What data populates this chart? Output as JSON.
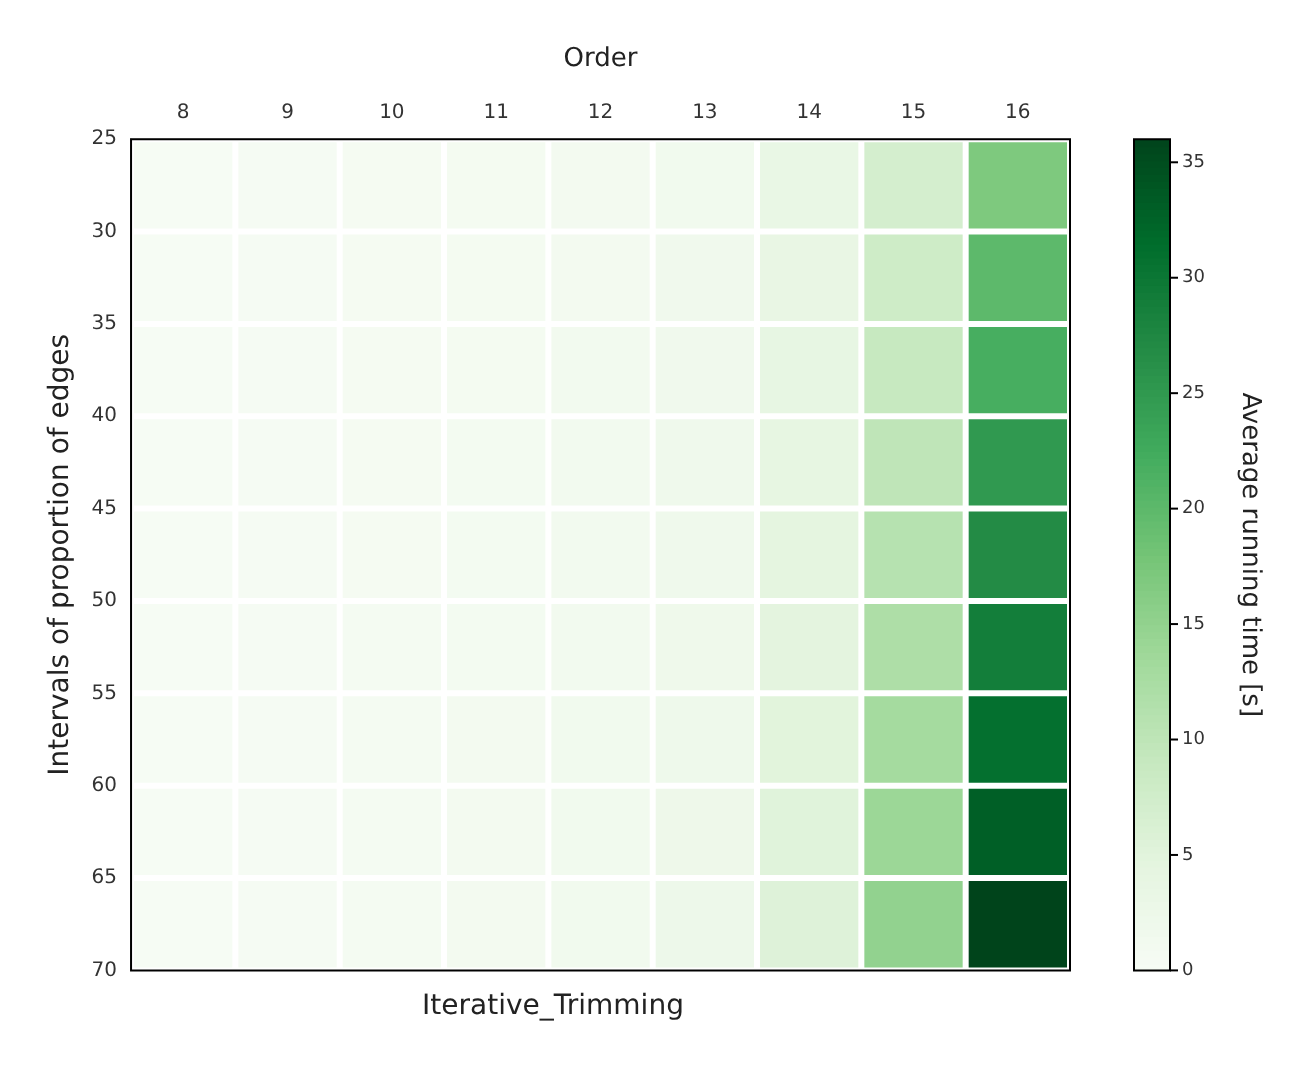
{
  "chart_data": {
    "type": "heatmap",
    "title": "Iterative_Trimming",
    "xlabel": "Order",
    "ylabel": "Intervals of proportion of edges",
    "clabel": "Average running time [s]",
    "categories": [
      "8",
      "9",
      "10",
      "11",
      "12",
      "13",
      "14",
      "15",
      "16"
    ],
    "ylim": [
      70,
      25
    ],
    "yticks": [
      25,
      30,
      35,
      40,
      45,
      50,
      55,
      60,
      65,
      70
    ],
    "clim": [
      0,
      36
    ],
    "cticks": [
      0,
      5,
      10,
      15,
      20,
      25,
      30,
      35
    ],
    "cells": [
      [
        0.2,
        0.4,
        0.6,
        0.8,
        1.1,
        1.6,
        3.4,
        7,
        17
      ],
      [
        0.2,
        0.4,
        0.6,
        0.8,
        1.1,
        1.7,
        3.6,
        8,
        20
      ],
      [
        0.2,
        0.4,
        0.6,
        0.8,
        1.2,
        1.8,
        3.9,
        9,
        22
      ],
      [
        0.2,
        0.4,
        0.6,
        0.9,
        1.2,
        1.9,
        4.1,
        10,
        25
      ],
      [
        0.2,
        0.4,
        0.6,
        0.9,
        1.3,
        2.0,
        4.4,
        11,
        27
      ],
      [
        0.2,
        0.4,
        0.7,
        0.9,
        1.3,
        2.1,
        4.7,
        12,
        29
      ],
      [
        0.2,
        0.4,
        0.7,
        1.0,
        1.4,
        2.2,
        5.0,
        13,
        31
      ],
      [
        0.2,
        0.4,
        0.7,
        1.0,
        1.4,
        2.3,
        5.2,
        14,
        33
      ],
      [
        0.2,
        0.4,
        0.7,
        1.0,
        1.5,
        2.4,
        5.5,
        15,
        36
      ]
    ]
  }
}
